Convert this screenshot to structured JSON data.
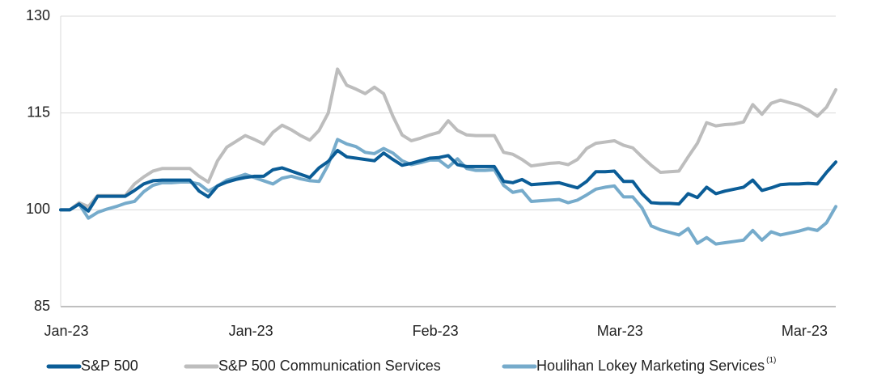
{
  "chart_data": {
    "type": "line",
    "categories": [
      "Jan-23",
      null,
      null,
      null,
      null,
      null,
      null,
      null,
      null,
      null,
      null,
      null,
      null,
      null,
      null,
      null,
      null,
      null,
      null,
      null,
      "Jan-23",
      null,
      null,
      null,
      null,
      null,
      null,
      null,
      null,
      null,
      null,
      null,
      null,
      null,
      null,
      null,
      null,
      null,
      null,
      null,
      "Feb-23",
      null,
      null,
      null,
      null,
      null,
      null,
      null,
      null,
      null,
      null,
      null,
      null,
      null,
      null,
      null,
      null,
      null,
      null,
      null,
      "Mar-23",
      null,
      null,
      null,
      null,
      null,
      null,
      null,
      null,
      null,
      null,
      null,
      null,
      null,
      null,
      null,
      null,
      null,
      null,
      null,
      "Mar-23",
      null,
      null,
      null,
      null
    ],
    "ylim": [
      85,
      130
    ],
    "yticks": [
      85,
      100,
      115,
      130
    ],
    "grid": true,
    "legend": "bottom",
    "series": [
      {
        "name": "S&P 500",
        "color": "#0b5d97",
        "values": [
          100,
          100,
          100.9,
          99.8,
          102.1,
          102.1,
          102.1,
          102.1,
          103.0,
          104.0,
          104.5,
          104.6,
          104.6,
          104.6,
          104.6,
          102.9,
          102.0,
          103.7,
          104.3,
          104.7,
          105.0,
          105.2,
          105.2,
          106.2,
          106.5,
          106.0,
          105.5,
          105.0,
          106.5,
          107.5,
          109.2,
          108.2,
          108.0,
          107.8,
          107.6,
          108.8,
          107.8,
          106.9,
          107.2,
          107.6,
          108.0,
          108.1,
          108.4,
          107.0,
          106.7,
          106.7,
          106.7,
          106.7,
          104.4,
          104.2,
          104.7,
          103.9,
          104.0,
          104.1,
          104.2,
          103.8,
          103.4,
          104.4,
          105.9,
          105.9,
          106.0,
          104.4,
          104.4,
          102.5,
          101.1,
          101.0,
          101.0,
          100.9,
          102.5,
          101.9,
          103.5,
          102.5,
          102.9,
          103.2,
          103.5,
          104.6,
          103.0,
          103.4,
          103.9,
          104.0,
          104.0,
          104.1,
          104.0,
          105.8,
          107.4
        ]
      },
      {
        "name": "S&P 500 Communication Services",
        "color": "#bdbdbd",
        "values": [
          100,
          100,
          101.1,
          100.5,
          102.2,
          102.2,
          102.2,
          102.2,
          104.0,
          105.1,
          106.0,
          106.4,
          106.4,
          106.4,
          106.4,
          105.2,
          104.3,
          107.6,
          109.7,
          110.6,
          111.5,
          110.9,
          110.2,
          112.0,
          113.1,
          112.4,
          111.5,
          110.8,
          112.3,
          115.0,
          121.8,
          119.3,
          118.7,
          118.0,
          119.0,
          118.0,
          114.5,
          111.6,
          110.7,
          111.1,
          111.6,
          112.0,
          113.8,
          112.3,
          111.6,
          111.5,
          111.5,
          111.5,
          108.9,
          108.6,
          107.8,
          106.8,
          107.0,
          107.2,
          107.3,
          107.0,
          107.8,
          109.5,
          110.3,
          110.5,
          110.7,
          110.0,
          109.6,
          108.2,
          106.9,
          105.8,
          105.9,
          106.0,
          108.2,
          110.3,
          113.5,
          113.0,
          113.2,
          113.3,
          113.6,
          116.3,
          114.8,
          116.5,
          117.0,
          116.6,
          116.2,
          115.5,
          114.5,
          115.9,
          118.6
        ]
      },
      {
        "name": "Houlihan Lokey Marketing Services",
        "name_note": "(1)",
        "color": "#76abcb",
        "values": [
          100,
          100,
          100.9,
          98.7,
          99.6,
          100.1,
          100.5,
          101.0,
          101.3,
          102.8,
          103.8,
          104.2,
          104.2,
          104.3,
          104.3,
          104.0,
          102.9,
          103.7,
          104.6,
          105.0,
          105.5,
          105.0,
          104.5,
          104.0,
          104.9,
          105.2,
          104.8,
          104.5,
          104.4,
          107.0,
          110.9,
          110.2,
          109.8,
          108.9,
          108.7,
          109.5,
          108.8,
          107.6,
          107.0,
          107.3,
          107.7,
          107.7,
          106.6,
          107.9,
          106.4,
          106.1,
          106.1,
          106.2,
          103.8,
          102.7,
          103.0,
          101.3,
          101.4,
          101.5,
          101.6,
          101.1,
          101.5,
          102.3,
          103.2,
          103.5,
          103.7,
          102.0,
          102.0,
          100.3,
          97.5,
          96.9,
          96.5,
          96.1,
          97.1,
          94.8,
          95.7,
          94.7,
          94.9,
          95.1,
          95.3,
          96.8,
          95.3,
          96.6,
          96.1,
          96.4,
          96.7,
          97.1,
          96.8,
          98.0,
          100.5
        ]
      }
    ]
  }
}
